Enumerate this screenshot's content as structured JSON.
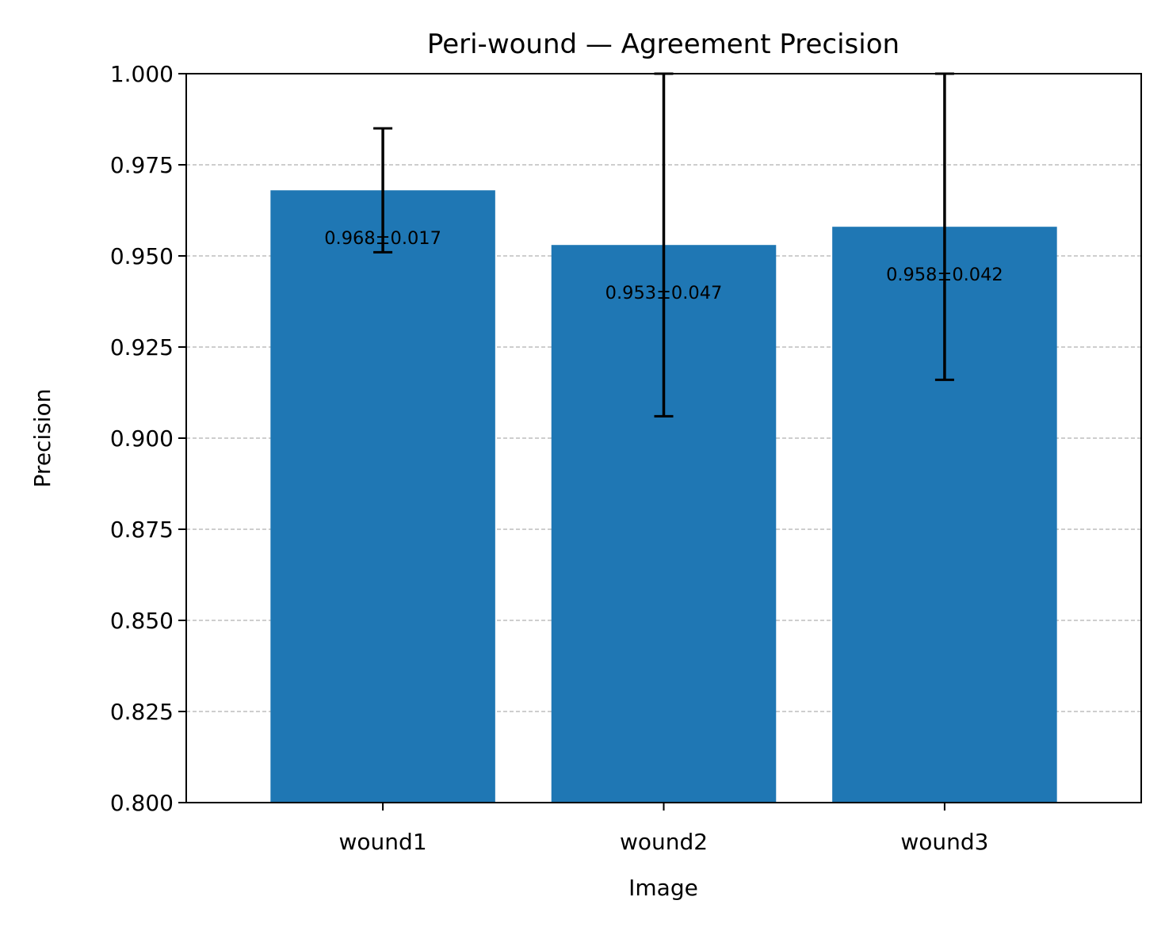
{
  "chart_data": {
    "type": "bar",
    "title": "Peri-wound — Agreement Precision",
    "xlabel": "Image",
    "ylabel": "Precision",
    "categories": [
      "wound1",
      "wound2",
      "wound3"
    ],
    "values": [
      0.968,
      0.953,
      0.958
    ],
    "errors": [
      0.017,
      0.047,
      0.042
    ],
    "value_labels": [
      "0.968±0.017",
      "0.953±0.047",
      "0.958±0.042"
    ],
    "ylim": [
      0.8,
      1.0
    ],
    "yticks": [
      0.8,
      0.825,
      0.85,
      0.875,
      0.9,
      0.925,
      0.95,
      0.975,
      1.0
    ],
    "ytick_labels": [
      "0.800",
      "0.825",
      "0.850",
      "0.875",
      "0.900",
      "0.925",
      "0.950",
      "0.975",
      "1.000"
    ],
    "grid": {
      "axis": "y",
      "style": "dashed"
    },
    "colors": {
      "bar": "#1f77b4",
      "errorbar": "#000000",
      "grid": "#b0b0b0"
    }
  }
}
